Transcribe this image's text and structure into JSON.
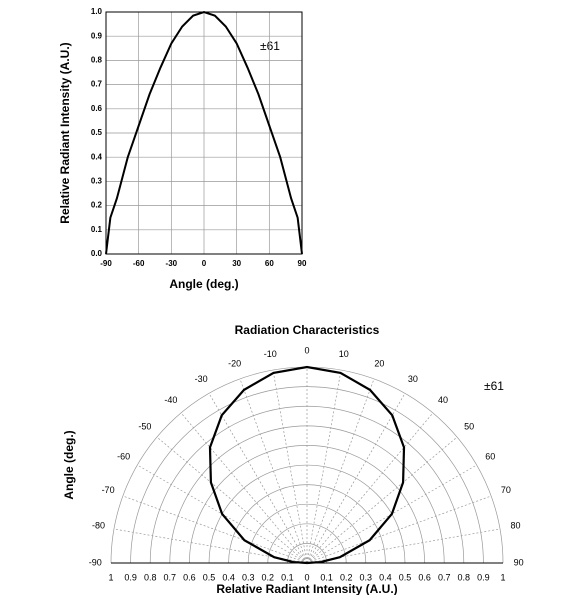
{
  "chart_data": [
    {
      "type": "line",
      "y_label": "Relative Radiant Intensity (A.U.)",
      "x_label": "Angle (deg.)",
      "annotation": "±61",
      "x": [
        -90,
        -86,
        -80,
        -70,
        -60,
        -50,
        -40,
        -30,
        -20,
        -10,
        0,
        10,
        20,
        30,
        40,
        50,
        60,
        70,
        80,
        86,
        90
      ],
      "series": [
        {
          "color": "#000000",
          "values": [
            0.0,
            0.15,
            0.23,
            0.4,
            0.53,
            0.66,
            0.77,
            0.87,
            0.94,
            0.985,
            1.0,
            0.985,
            0.94,
            0.87,
            0.77,
            0.66,
            0.53,
            0.4,
            0.23,
            0.15,
            0.0
          ]
        }
      ],
      "xlim": [
        -90,
        90
      ],
      "xticks": [
        -90,
        -60,
        -30,
        0,
        30,
        60,
        90
      ],
      "ylim": [
        0,
        1
      ],
      "yticks": [
        {
          "value": 0,
          "label": "0.0"
        },
        0.1,
        0.2,
        0.3,
        0.4,
        0.5,
        0.6,
        0.7,
        0.8,
        0.9,
        {
          "value": 1,
          "label": "1.0"
        }
      ],
      "grid": true
    },
    {
      "type": "polar",
      "title": "Radiation Characteristics",
      "y_label": "Angle (deg.)",
      "x_label": "Relative Radiant Intensity (A.U.)",
      "annotation": "±61",
      "theta": [
        -90,
        -86,
        -80,
        -70,
        -60,
        -50,
        -40,
        -30,
        -20,
        -10,
        0,
        10,
        20,
        30,
        40,
        50,
        60,
        70,
        80,
        86,
        90
      ],
      "series": [
        {
          "color": "#000000",
          "values": [
            0.0,
            0.07,
            0.17,
            0.34,
            0.5,
            0.64,
            0.77,
            0.87,
            0.94,
            0.985,
            1.0,
            0.985,
            0.94,
            0.87,
            0.77,
            0.64,
            0.5,
            0.34,
            0.17,
            0.07,
            0.0
          ]
        }
      ],
      "thetaticks": [
        -90,
        -80,
        -70,
        -60,
        -50,
        -40,
        -30,
        -20,
        -10,
        0,
        10,
        20,
        30,
        40,
        50,
        60,
        70,
        80,
        90
      ],
      "rlim": [
        0,
        1
      ],
      "rticks": [
        0,
        0.1,
        0.2,
        0.3,
        0.4,
        0.5,
        0.6,
        0.7,
        0.8,
        0.9,
        1
      ],
      "grid": true
    }
  ]
}
